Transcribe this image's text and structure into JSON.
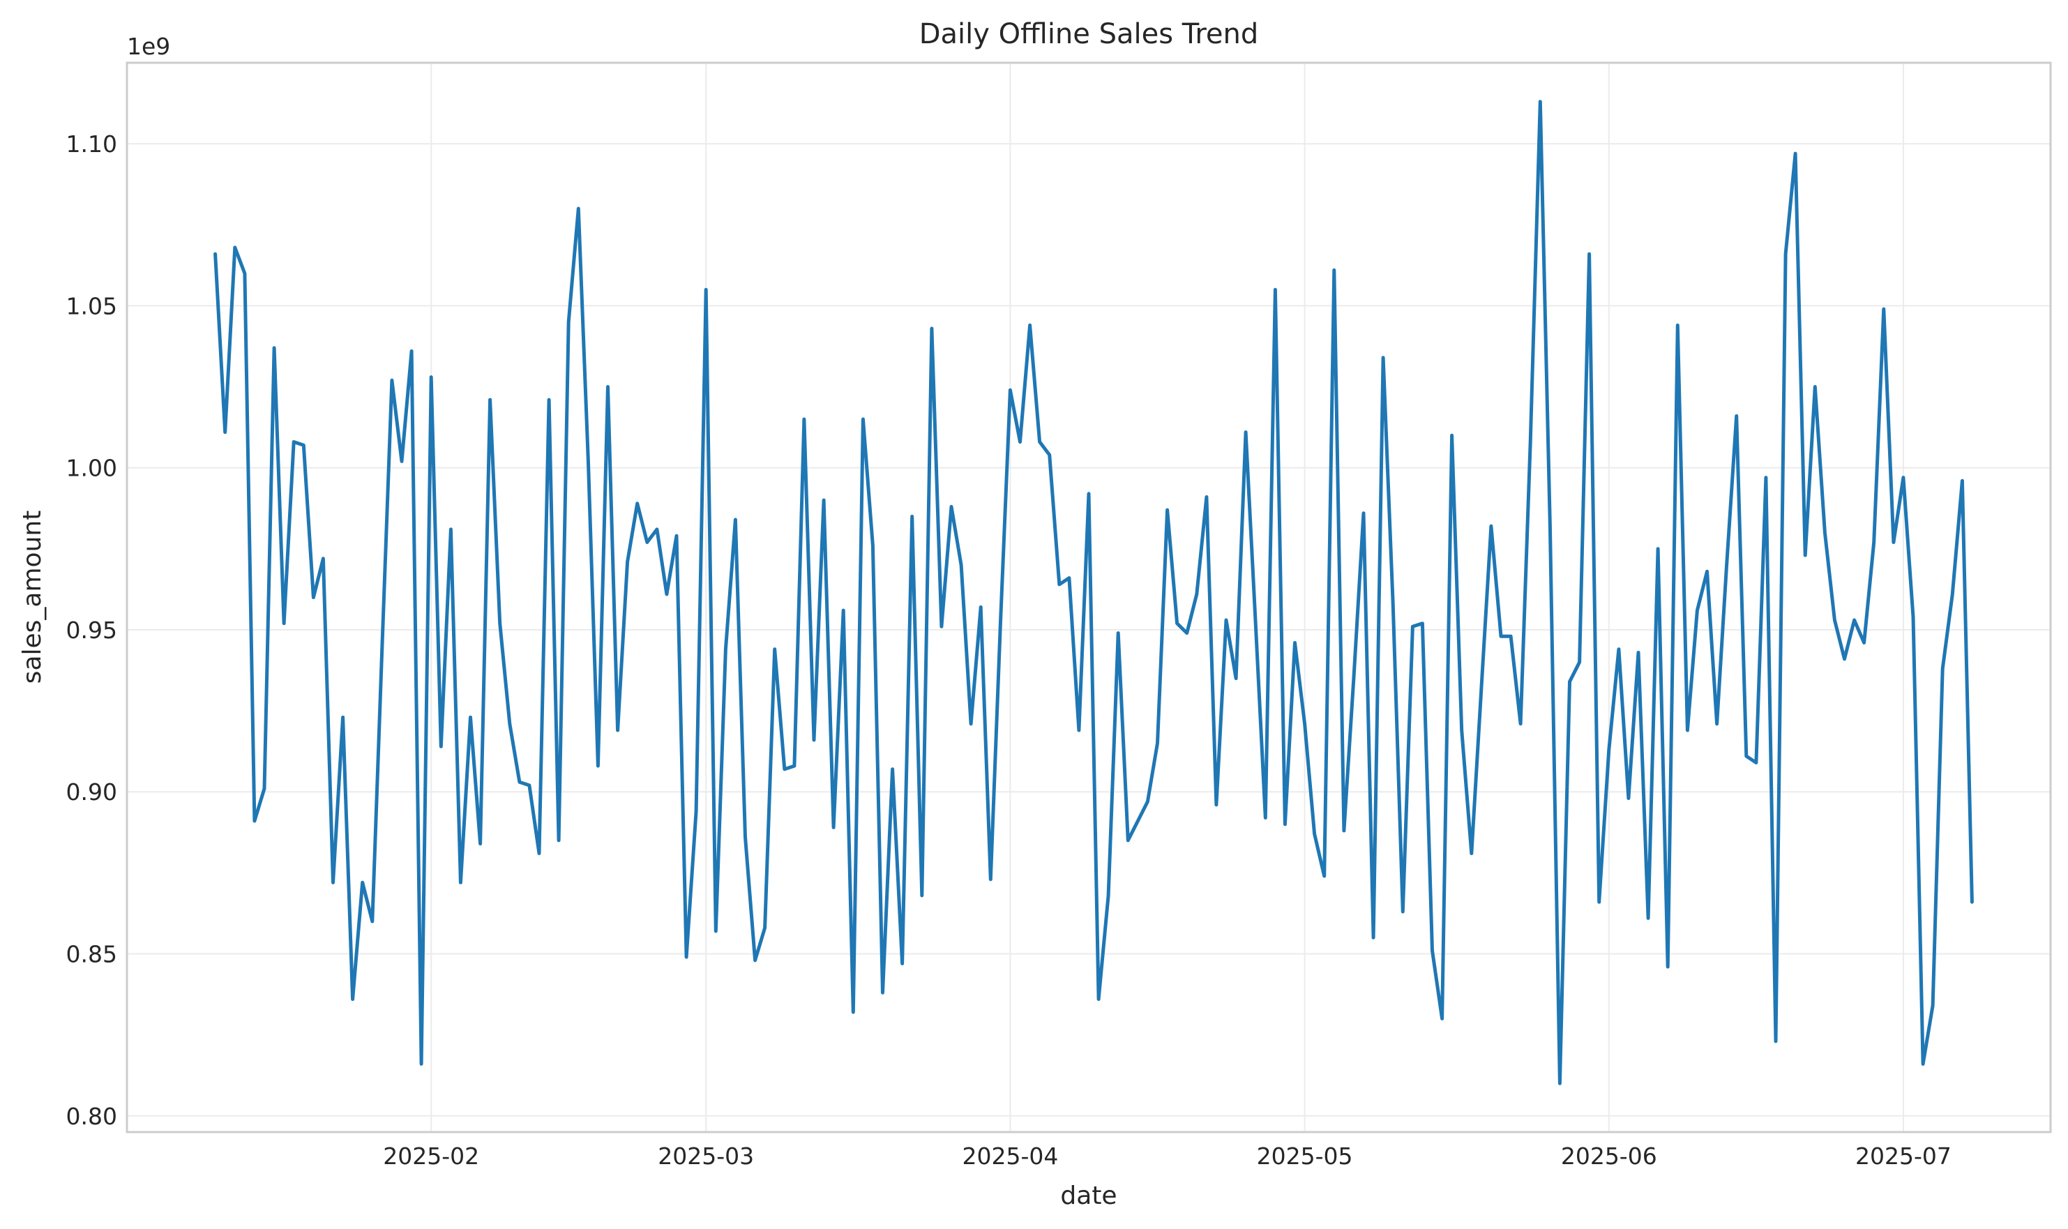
{
  "chart_data": {
    "type": "line",
    "title": "Daily Offline Sales Trend",
    "xlabel": "date",
    "ylabel": "sales_amount",
    "y_offset_label": "1e9",
    "ylim": [
      0.795,
      1.125
    ],
    "xlim": [
      "2025-01-01",
      "2025-07-16"
    ],
    "grid": true,
    "legend": "none",
    "x_ticks": [
      "2025-02-01",
      "2025-03-01",
      "2025-04-01",
      "2025-05-01",
      "2025-06-01",
      "2025-07-01"
    ],
    "x_tick_labels": [
      "2025-02",
      "2025-03",
      "2025-04",
      "2025-05",
      "2025-06",
      "2025-07"
    ],
    "y_ticks": [
      0.8,
      0.85,
      0.9,
      0.95,
      1.0,
      1.05,
      1.1
    ],
    "y_tick_labels": [
      "0.80",
      "0.85",
      "0.90",
      "0.95",
      "1.00",
      "1.05",
      "1.10"
    ],
    "x_start": "2025-01-10",
    "values": [
      1.066,
      1.011,
      1.068,
      1.06,
      0.891,
      0.901,
      1.037,
      0.952,
      1.008,
      1.007,
      0.96,
      0.972,
      0.872,
      0.923,
      0.836,
      0.872,
      0.86,
      0.945,
      1.027,
      1.002,
      1.036,
      0.816,
      1.028,
      0.914,
      0.981,
      0.872,
      0.923,
      0.884,
      1.021,
      0.952,
      0.921,
      0.903,
      0.902,
      0.881,
      1.021,
      0.885,
      1.045,
      1.08,
      1.002,
      0.908,
      1.025,
      0.919,
      0.971,
      0.989,
      0.977,
      0.981,
      0.961,
      0.979,
      0.849,
      0.894,
      1.055,
      0.857,
      0.944,
      0.984,
      0.886,
      0.848,
      0.858,
      0.944,
      0.907,
      0.908,
      1.015,
      0.916,
      0.99,
      0.889,
      0.956,
      0.832,
      1.015,
      0.976,
      0.838,
      0.907,
      0.847,
      0.985,
      0.868,
      1.043,
      0.951,
      0.988,
      0.97,
      0.921,
      0.957,
      0.873,
      0.952,
      1.024,
      1.008,
      1.044,
      1.008,
      1.004,
      0.964,
      0.966,
      0.919,
      0.992,
      0.836,
      0.868,
      0.949,
      0.885,
      0.891,
      0.897,
      0.915,
      0.987,
      0.952,
      0.949,
      0.961,
      0.991,
      0.896,
      0.953,
      0.935,
      1.011,
      0.952,
      0.892,
      1.055,
      0.89,
      0.946,
      0.921,
      0.887,
      0.874,
      1.061,
      0.888,
      0.935,
      0.986,
      0.855,
      1.034,
      0.958,
      0.863,
      0.951,
      0.952,
      0.851,
      0.83,
      1.01,
      0.919,
      0.881,
      0.932,
      0.982,
      0.948,
      0.948,
      0.921,
      1.008,
      1.113,
      0.982,
      0.81,
      0.934,
      0.94,
      1.066,
      0.866,
      0.913,
      0.944,
      0.898,
      0.943,
      0.861,
      0.975,
      0.846,
      1.044,
      0.919,
      0.956,
      0.968,
      0.921,
      0.97,
      1.016,
      0.911,
      0.909,
      0.997,
      0.823,
      1.066,
      1.097,
      0.973,
      1.025,
      0.98,
      0.953,
      0.941,
      0.953,
      0.946,
      0.977,
      1.049,
      0.977,
      0.997,
      0.954,
      0.816,
      0.834,
      0.938,
      0.961,
      0.996,
      0.866
    ]
  }
}
